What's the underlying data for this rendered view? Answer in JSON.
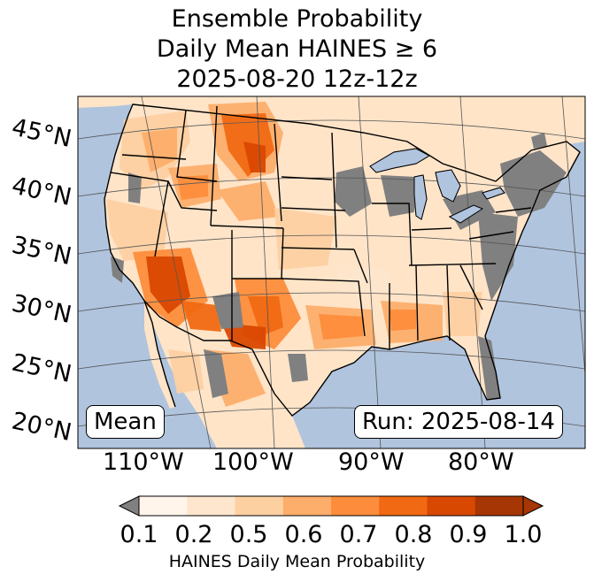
{
  "title": {
    "line1": "Ensemble Probability",
    "line2": "Daily Mean HAINES ≥ 6",
    "line3": "2025-08-20 12z-12z"
  },
  "map": {
    "lat_labels": [
      "45°N",
      "40°N",
      "35°N",
      "30°N",
      "25°N",
      "20°N"
    ],
    "lon_labels": [
      "110°W",
      "100°W",
      "90°W",
      "80°W"
    ],
    "stat_label": "Mean",
    "run_label": "Run: 2025-08-14",
    "colors": {
      "ocean": "#b0c4de",
      "land": "#ffe4c8",
      "missing": "#808080",
      "boundary": "#000000",
      "graticule": "#555555"
    }
  },
  "colorbar": {
    "tick_labels": [
      "0.1",
      "0.2",
      "0.5",
      "0.6",
      "0.7",
      "0.8",
      "0.9",
      "1.0"
    ],
    "label": "HAINES Daily Mean Probability",
    "under_color": "#808080",
    "colors": [
      "#fff5eb",
      "#fee6ce",
      "#fdd0a2",
      "#fdae6b",
      "#fd8d3c",
      "#f16913",
      "#d94801",
      "#a63603"
    ]
  }
}
